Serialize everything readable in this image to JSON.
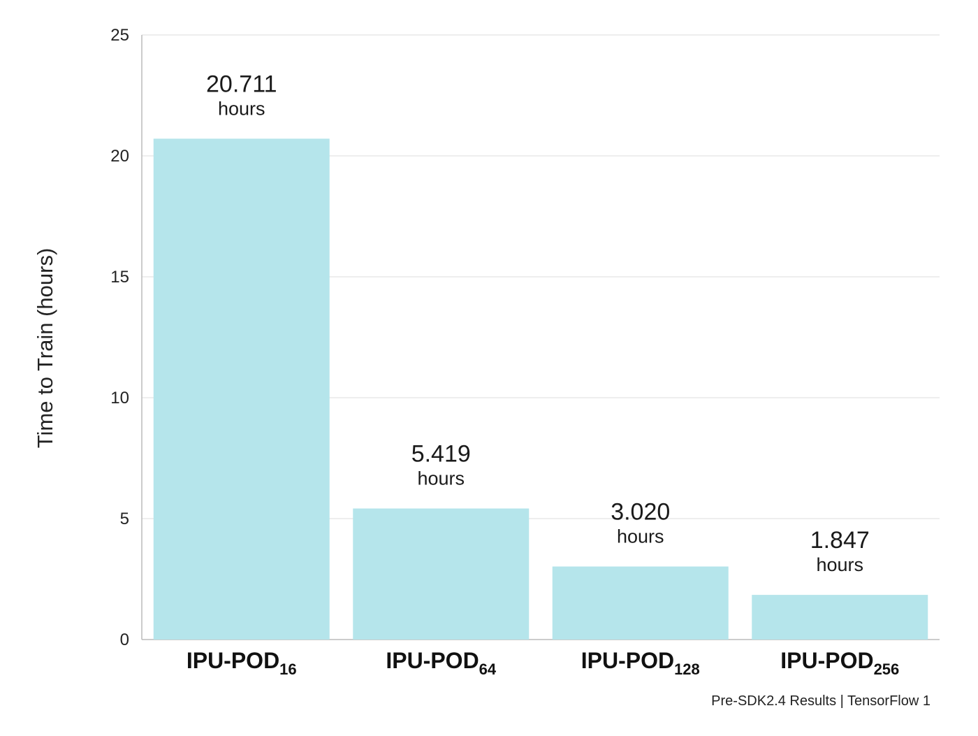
{
  "chart_data": {
    "type": "bar",
    "ylabel": "Time to Train (hours)",
    "ylim": [
      0,
      25
    ],
    "yticks": [
      0,
      5,
      10,
      15,
      20,
      25
    ],
    "grid": true,
    "bar_color": "#b5e5eb",
    "grid_color": "#dddddd",
    "categories": [
      {
        "main": "IPU-POD",
        "sub": "16"
      },
      {
        "main": "IPU-POD",
        "sub": "64"
      },
      {
        "main": "IPU-POD",
        "sub": "128"
      },
      {
        "main": "IPU-POD",
        "sub": "256"
      }
    ],
    "values": [
      20.711,
      5.419,
      3.02,
      1.847
    ],
    "data_labels": [
      "20.711",
      "5.419",
      "3.020",
      "1.847"
    ],
    "data_label_unit": "hours",
    "footnote": "Pre-SDK2.4 Results | TensorFlow 1"
  }
}
